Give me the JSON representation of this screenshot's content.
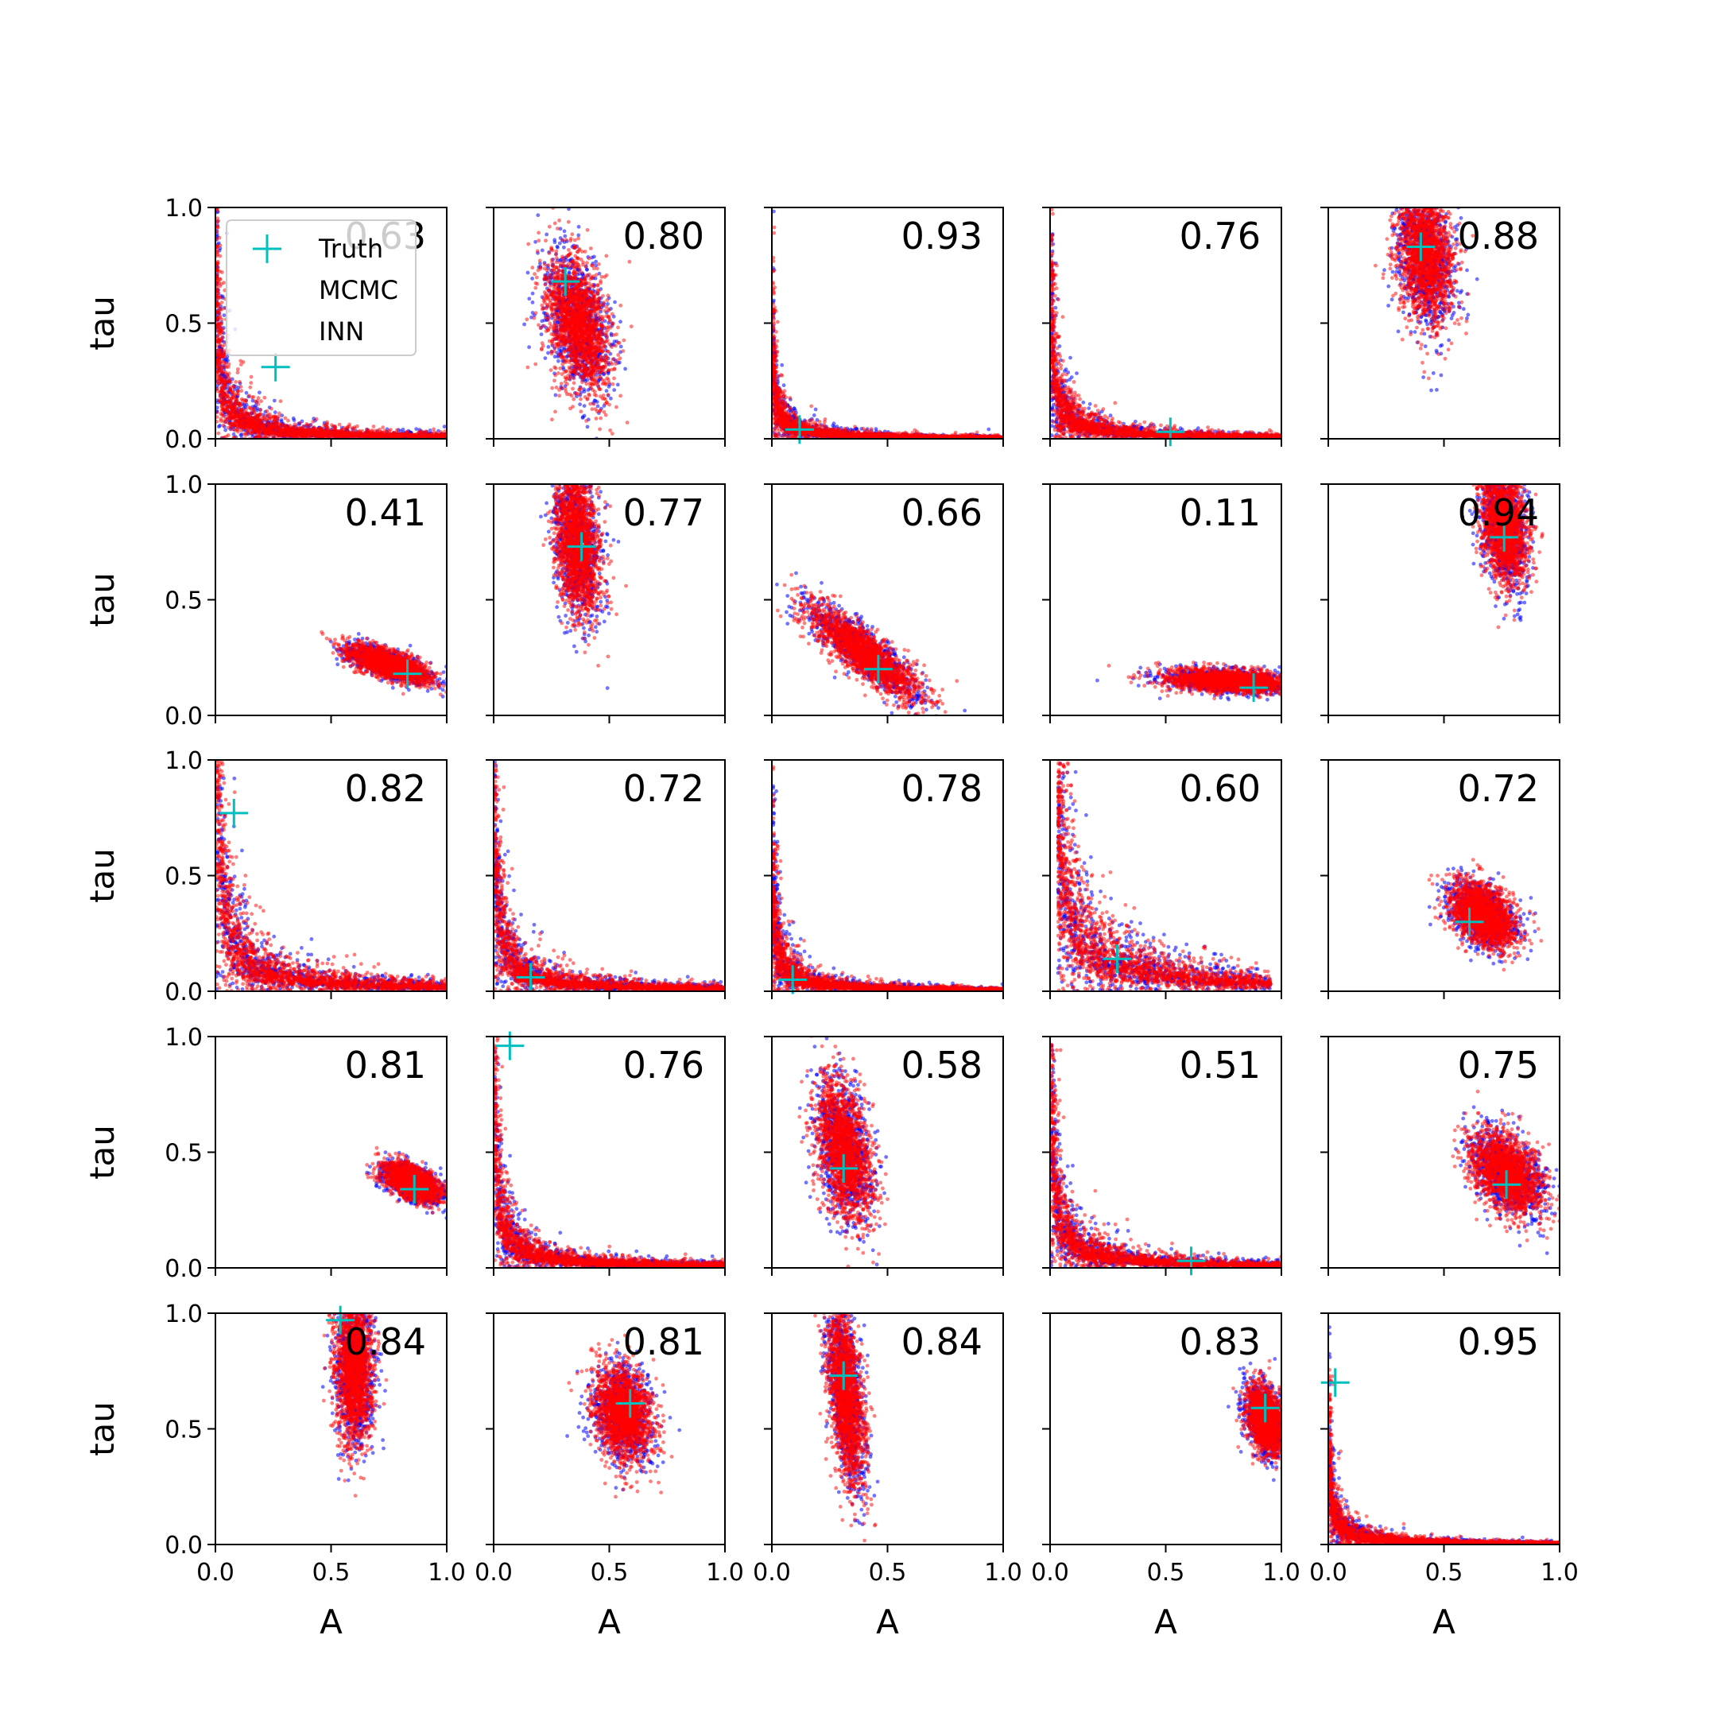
{
  "colors": {
    "truth": "#00bfbf",
    "mcmc": "#0000ff",
    "inn": "#ff0000",
    "axes": "#000000"
  },
  "legend": {
    "entries": [
      {
        "label": "Truth",
        "marker": "plus"
      },
      {
        "label": "MCMC",
        "marker": "point"
      },
      {
        "label": "INN",
        "marker": "point"
      }
    ]
  },
  "chart_data": {
    "type": "scatter",
    "rows": 5,
    "cols": 5,
    "xlabel": "A",
    "ylabel": "tau",
    "xlim": [
      0,
      1
    ],
    "ylim": [
      0,
      1
    ],
    "xticks": [
      "0.0",
      "0.5",
      "1.0"
    ],
    "yticks": [
      "0.0",
      "0.5",
      "1.0"
    ],
    "series_names": [
      "MCMC",
      "INN"
    ],
    "panels": [
      {
        "corr": "0.63",
        "truth": [
          0.26,
          0.31
        ],
        "shape": "hyperbola",
        "k": 0.012,
        "xmin": 0.0,
        "xmax": 1.0
      },
      {
        "corr": "0.80",
        "truth": [
          0.31,
          0.68
        ],
        "shape": "blob",
        "cx": 0.36,
        "cy": 0.5,
        "sx": 0.07,
        "sy": 0.15,
        "rho": -0.35
      },
      {
        "corr": "0.93",
        "truth": [
          0.12,
          0.04
        ],
        "shape": "hyperbola",
        "k": 0.006,
        "xmin": 0.0,
        "xmax": 1.0
      },
      {
        "corr": "0.76",
        "truth": [
          0.52,
          0.03
        ],
        "shape": "hyperbola",
        "k": 0.01,
        "xmin": 0.0,
        "xmax": 1.0
      },
      {
        "corr": "0.88",
        "truth": [
          0.4,
          0.83
        ],
        "shape": "blob",
        "cx": 0.42,
        "cy": 0.8,
        "sx": 0.06,
        "sy": 0.15,
        "rho": -0.2
      },
      {
        "corr": "0.41",
        "truth": [
          0.83,
          0.18
        ],
        "shape": "blob",
        "cx": 0.75,
        "cy": 0.22,
        "sx": 0.09,
        "sy": 0.04,
        "rho": -0.7
      },
      {
        "corr": "0.77",
        "truth": [
          0.38,
          0.73
        ],
        "shape": "blob",
        "cx": 0.36,
        "cy": 0.75,
        "sx": 0.05,
        "sy": 0.16,
        "rho": -0.3
      },
      {
        "corr": "0.66",
        "truth": [
          0.46,
          0.2
        ],
        "shape": "blob",
        "cx": 0.4,
        "cy": 0.27,
        "sx": 0.12,
        "sy": 0.1,
        "rho": -0.85
      },
      {
        "corr": "0.11",
        "truth": [
          0.88,
          0.12
        ],
        "shape": "blob",
        "cx": 0.78,
        "cy": 0.15,
        "sx": 0.14,
        "sy": 0.025,
        "rho": -0.3
      },
      {
        "corr": "0.94",
        "truth": [
          0.76,
          0.77
        ],
        "shape": "blob",
        "cx": 0.76,
        "cy": 0.82,
        "sx": 0.05,
        "sy": 0.13,
        "rho": -0.3
      },
      {
        "corr": "0.82",
        "truth": [
          0.08,
          0.77
        ],
        "shape": "hyperbola",
        "k": 0.022,
        "xmin": 0.0,
        "xmax": 1.0
      },
      {
        "corr": "0.72",
        "truth": [
          0.16,
          0.06
        ],
        "shape": "hyperbola",
        "k": 0.014,
        "xmin": 0.0,
        "xmax": 1.0
      },
      {
        "corr": "0.78",
        "truth": [
          0.09,
          0.05
        ],
        "shape": "hyperbola",
        "k": 0.008,
        "xmin": 0.0,
        "xmax": 1.0
      },
      {
        "corr": "0.60",
        "truth": [
          0.29,
          0.14
        ],
        "shape": "hyperbola",
        "k": 0.04,
        "xmin": 0.03,
        "xmax": 0.95
      },
      {
        "corr": "0.72",
        "truth": [
          0.61,
          0.3
        ],
        "shape": "blob",
        "cx": 0.67,
        "cy": 0.33,
        "sx": 0.07,
        "sy": 0.07,
        "rho": -0.4
      },
      {
        "corr": "0.81",
        "truth": [
          0.86,
          0.34
        ],
        "shape": "blob",
        "cx": 0.85,
        "cy": 0.37,
        "sx": 0.06,
        "sy": 0.04,
        "rho": -0.5
      },
      {
        "corr": "0.76",
        "truth": [
          0.07,
          0.96
        ],
        "shape": "hyperbola",
        "k": 0.012,
        "xmin": 0.0,
        "xmax": 1.0
      },
      {
        "corr": "0.58",
        "truth": [
          0.31,
          0.43
        ],
        "shape": "blob",
        "cx": 0.31,
        "cy": 0.51,
        "sx": 0.06,
        "sy": 0.15,
        "rho": -0.4
      },
      {
        "corr": "0.51",
        "truth": [
          0.61,
          0.03
        ],
        "shape": "hyperbola",
        "k": 0.014,
        "xmin": 0.0,
        "xmax": 1.0
      },
      {
        "corr": "0.75",
        "truth": [
          0.77,
          0.36
        ],
        "shape": "blob",
        "cx": 0.77,
        "cy": 0.41,
        "sx": 0.08,
        "sy": 0.09,
        "rho": -0.45
      },
      {
        "corr": "0.84",
        "truth": [
          0.54,
          0.97
        ],
        "shape": "blob",
        "cx": 0.6,
        "cy": 0.76,
        "sx": 0.04,
        "sy": 0.16,
        "rho": 0.0
      },
      {
        "corr": "0.81",
        "truth": [
          0.59,
          0.61
        ],
        "shape": "blob",
        "cx": 0.56,
        "cy": 0.57,
        "sx": 0.06,
        "sy": 0.1,
        "rho": -0.2
      },
      {
        "corr": "0.84",
        "truth": [
          0.31,
          0.73
        ],
        "shape": "blob",
        "cx": 0.32,
        "cy": 0.65,
        "sx": 0.04,
        "sy": 0.2,
        "rho": -0.5
      },
      {
        "corr": "0.83",
        "truth": [
          0.93,
          0.59
        ],
        "shape": "blob",
        "cx": 0.93,
        "cy": 0.54,
        "sx": 0.04,
        "sy": 0.07,
        "rho": -0.3
      },
      {
        "corr": "0.95",
        "truth": [
          0.03,
          0.7
        ],
        "shape": "hyperbola",
        "k": 0.006,
        "xmin": 0.0,
        "xmax": 1.0
      }
    ]
  }
}
